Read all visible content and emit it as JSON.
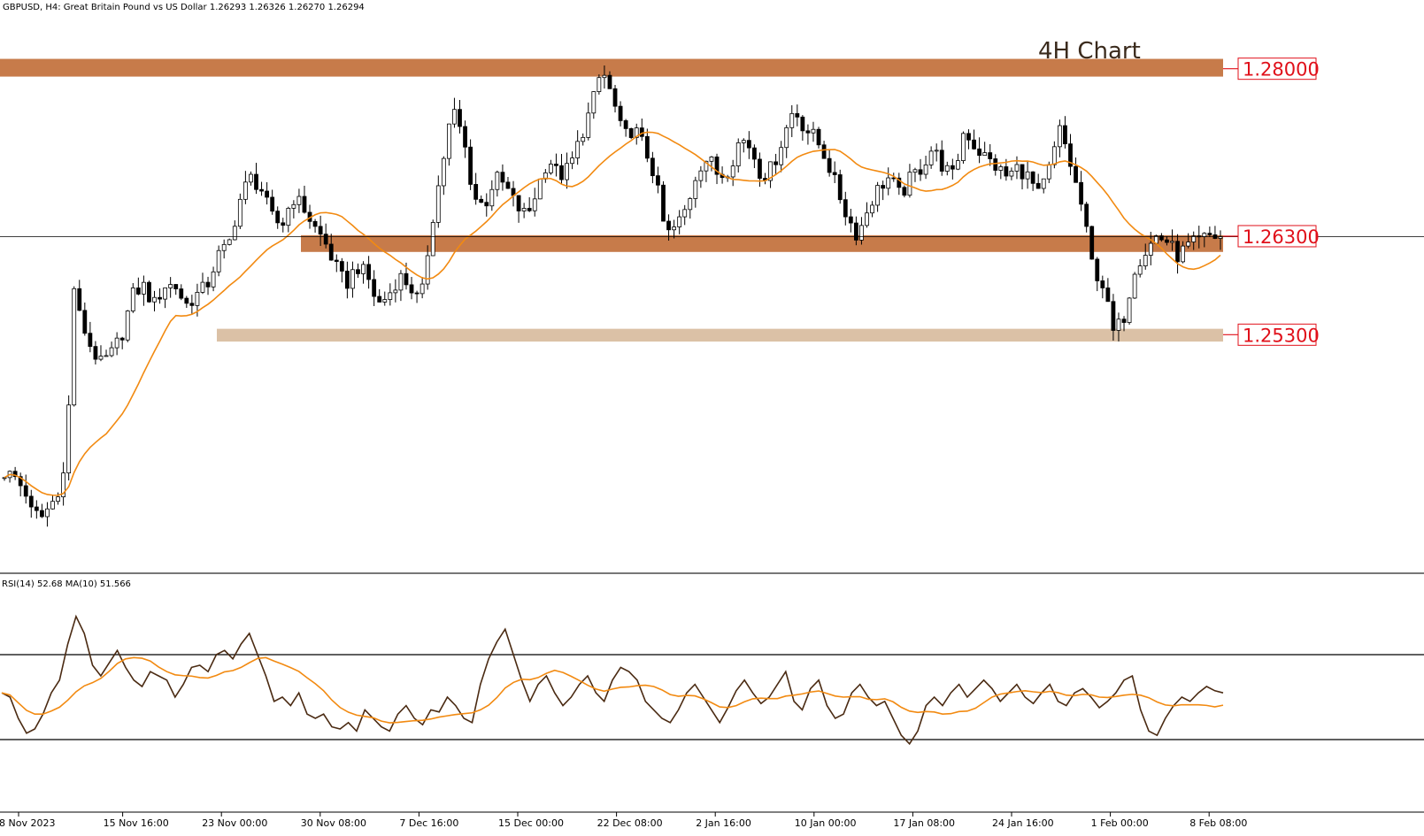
{
  "header": {
    "symbol_info": "GBPUSD, H4:  Great Britain Pound vs US Dollar  1.26293 1.26326 1.26270 1.26294"
  },
  "chart_data": {
    "type": "candlestick",
    "title": "4H Chart",
    "ylim": [
      1.2295,
      1.285
    ],
    "levels": [
      {
        "label": "1.28000",
        "value": 1.28,
        "band": [
          1.2792,
          1.281
        ],
        "color": "#c77b4a"
      },
      {
        "label": "1.26300",
        "value": 1.263,
        "band": [
          1.2614,
          1.2631
        ],
        "color": "#c77b4a"
      },
      {
        "label": "1.25300",
        "value": 1.253,
        "band": [
          1.2523,
          1.2536
        ],
        "color": "#dbc1a6"
      }
    ],
    "current_price": 1.26294,
    "price_path": [
      [
        0,
        1.239
      ],
      [
        2,
        1.2385
      ],
      [
        4,
        1.237
      ],
      [
        5,
        1.235
      ],
      [
        7,
        1.2345
      ],
      [
        9,
        1.236
      ],
      [
        11,
        1.2385
      ],
      [
        12,
        1.245
      ],
      [
        13,
        1.258
      ],
      [
        14,
        1.255
      ],
      [
        16,
        1.252
      ],
      [
        18,
        1.25
      ],
      [
        20,
        1.251
      ],
      [
        22,
        1.253
      ],
      [
        24,
        1.257
      ],
      [
        26,
        1.258
      ],
      [
        28,
        1.256
      ],
      [
        30,
        1.258
      ],
      [
        32,
        1.258
      ],
      [
        34,
        1.256
      ],
      [
        36,
        1.257
      ],
      [
        38,
        1.258
      ],
      [
        40,
        1.261
      ],
      [
        42,
        1.262
      ],
      [
        44,
        1.2665
      ],
      [
        46,
        1.269
      ],
      [
        48,
        1.268
      ],
      [
        50,
        1.265
      ],
      [
        52,
        1.264
      ],
      [
        54,
        1.267
      ],
      [
        56,
        1.266
      ],
      [
        58,
        1.264
      ],
      [
        60,
        1.2625
      ],
      [
        62,
        1.26
      ],
      [
        64,
        1.258
      ],
      [
        66,
        1.26
      ],
      [
        68,
        1.259
      ],
      [
        70,
        1.256
      ],
      [
        72,
        1.257
      ],
      [
        74,
        1.259
      ],
      [
        76,
        1.258
      ],
      [
        78,
        1.256
      ],
      [
        80,
        1.264
      ],
      [
        82,
        1.27
      ],
      [
        84,
        1.276
      ],
      [
        86,
        1.273
      ],
      [
        88,
        1.267
      ],
      [
        90,
        1.266
      ],
      [
        92,
        1.269
      ],
      [
        94,
        1.268
      ],
      [
        96,
        1.266
      ],
      [
        98,
        1.265
      ],
      [
        100,
        1.268
      ],
      [
        102,
        1.271
      ],
      [
        104,
        1.269
      ],
      [
        106,
        1.27
      ],
      [
        108,
        1.273
      ],
      [
        110,
        1.276
      ],
      [
        112,
        1.28
      ],
      [
        114,
        1.277
      ],
      [
        116,
        1.273
      ],
      [
        118,
        1.274
      ],
      [
        120,
        1.272
      ],
      [
        122,
        1.269
      ],
      [
        124,
        1.263
      ],
      [
        126,
        1.264
      ],
      [
        128,
        1.266
      ],
      [
        130,
        1.27
      ],
      [
        132,
        1.271
      ],
      [
        134,
        1.269
      ],
      [
        136,
        1.27
      ],
      [
        138,
        1.273
      ],
      [
        140,
        1.272
      ],
      [
        142,
        1.269
      ],
      [
        144,
        1.27
      ],
      [
        146,
        1.273
      ],
      [
        148,
        1.276
      ],
      [
        150,
        1.274
      ],
      [
        152,
        1.273
      ],
      [
        154,
        1.271
      ],
      [
        156,
        1.268
      ],
      [
        158,
        1.265
      ],
      [
        160,
        1.263
      ],
      [
        162,
        1.266
      ],
      [
        164,
        1.268
      ],
      [
        166,
        1.269
      ],
      [
        168,
        1.267
      ],
      [
        170,
        1.269
      ],
      [
        172,
        1.27
      ],
      [
        174,
        1.272
      ],
      [
        176,
        1.27
      ],
      [
        178,
        1.269
      ],
      [
        180,
        1.274
      ],
      [
        182,
        1.272
      ],
      [
        184,
        1.271
      ],
      [
        186,
        1.27
      ],
      [
        188,
        1.269
      ],
      [
        190,
        1.27
      ],
      [
        192,
        1.269
      ],
      [
        194,
        1.267
      ],
      [
        196,
        1.27
      ],
      [
        198,
        1.274
      ],
      [
        200,
        1.27
      ],
      [
        202,
        1.266
      ],
      [
        204,
        1.26
      ],
      [
        206,
        1.258
      ],
      [
        208,
        1.253
      ],
      [
        210,
        1.255
      ],
      [
        212,
        1.26
      ],
      [
        214,
        1.2615
      ],
      [
        216,
        1.263
      ],
      [
        218,
        1.2625
      ],
      [
        220,
        1.261
      ],
      [
        222,
        1.262
      ],
      [
        224,
        1.2625
      ],
      [
        226,
        1.263
      ],
      [
        228,
        1.2629
      ]
    ],
    "ma_label": "MA",
    "xlabels": [
      "8 Nov 2023",
      "15 Nov 16:00",
      "23 Nov 00:00",
      "30 Nov 08:00",
      "7 Dec 16:00",
      "15 Dec 00:00",
      "22 Dec 08:00",
      "2 Jan 16:00",
      "10 Jan 00:00",
      "17 Jan 08:00",
      "24 Jan 16:00",
      "1 Feb 00:00",
      "8 Feb 08:00"
    ],
    "rsi": {
      "label": "RSI(14) 52.68 MA(10) 51.566",
      "ylim": [
        0,
        100
      ],
      "levels": [
        70,
        30
      ],
      "values": [
        52,
        50,
        40,
        33,
        35,
        42,
        52,
        58,
        75,
        88,
        80,
        65,
        60,
        66,
        72,
        64,
        58,
        55,
        62,
        60,
        58,
        50,
        56,
        64,
        65,
        62,
        70,
        72,
        68,
        75,
        80,
        70,
        60,
        48,
        50,
        46,
        52,
        42,
        40,
        42,
        36,
        35,
        38,
        34,
        44,
        40,
        36,
        34,
        42,
        46,
        40,
        37,
        44,
        43,
        50,
        46,
        40,
        38,
        56,
        68,
        76,
        82,
        70,
        58,
        48,
        56,
        60,
        52,
        46,
        50,
        56,
        60,
        52,
        48,
        58,
        64,
        62,
        58,
        48,
        44,
        40,
        38,
        44,
        52,
        56,
        50,
        44,
        38,
        45,
        53,
        58,
        52,
        47,
        50,
        56,
        62,
        48,
        44,
        54,
        58,
        46,
        40,
        42,
        52,
        56,
        50,
        46,
        48,
        40,
        32,
        28,
        34,
        46,
        50,
        46,
        52,
        56,
        50,
        54,
        58,
        54,
        48,
        52,
        56,
        50,
        47,
        52,
        56,
        48,
        46,
        52,
        54,
        50,
        45,
        48,
        52,
        58,
        60,
        44,
        34,
        32,
        40,
        46,
        50,
        48,
        52,
        55,
        53,
        52
      ]
    }
  }
}
